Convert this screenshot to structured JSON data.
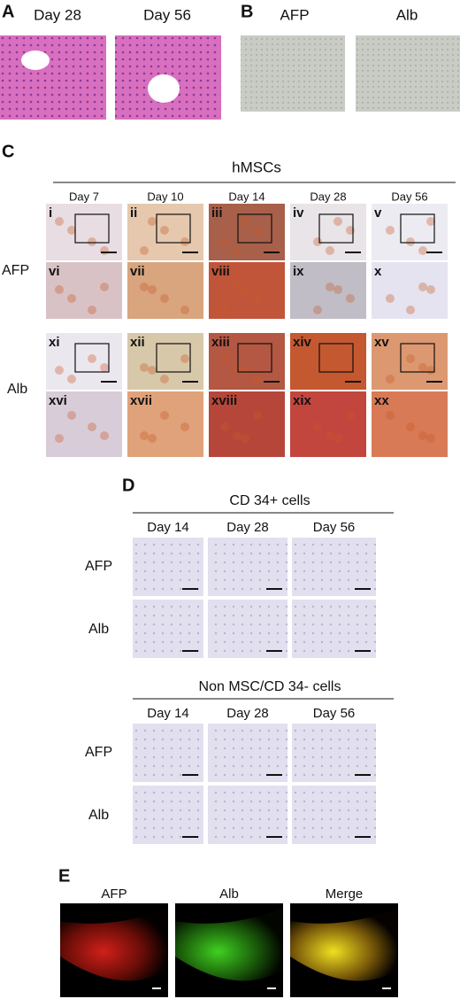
{
  "panel_a": {
    "label": "A",
    "columns": [
      "Day 28",
      "Day 56"
    ]
  },
  "panel_b": {
    "label": "B",
    "columns": [
      "AFP",
      "Alb"
    ]
  },
  "panel_c": {
    "label": "C",
    "title": "hMSCs",
    "columns": [
      "Day 7",
      "Day 10",
      "Day 14",
      "Day 28",
      "Day 56"
    ],
    "rows": [
      "AFP",
      "Alb"
    ],
    "tiles": [
      "i",
      "ii",
      "iii",
      "iv",
      "v",
      "vi",
      "vii",
      "viii",
      "ix",
      "x",
      "xi",
      "xii",
      "xiii",
      "xiv",
      "xv",
      "xvi",
      "xvii",
      "xviii",
      "xix",
      "xx"
    ]
  },
  "panel_d": {
    "label": "D",
    "groups": [
      {
        "title": "CD 34+ cells",
        "columns": [
          "Day 14",
          "Day 28",
          "Day 56"
        ],
        "rows": [
          "AFP",
          "Alb"
        ]
      },
      {
        "title": "Non MSC/CD 34- cells",
        "columns": [
          "Day 14",
          "Day 28",
          "Day 56"
        ],
        "rows": [
          "AFP",
          "Alb"
        ]
      }
    ]
  },
  "panel_e": {
    "label": "E",
    "columns": [
      "AFP",
      "Alb",
      "Merge"
    ]
  }
}
